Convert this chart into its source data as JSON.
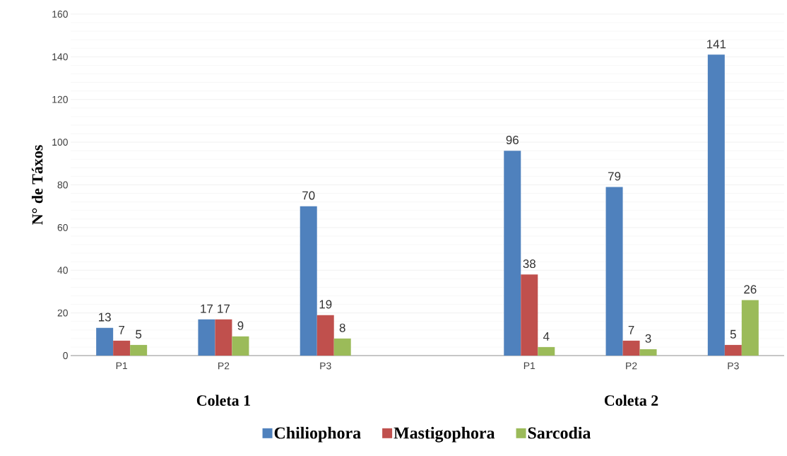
{
  "chart_data": {
    "type": "bar",
    "ylabel": "N° de Táxos",
    "categories": [
      "P1",
      "P2",
      "P3",
      null,
      "P1",
      "P2",
      "P3"
    ],
    "series": [
      {
        "name": "Chiliophora",
        "color": "#4f81bd",
        "values": [
          13,
          17,
          70,
          null,
          96,
          79,
          141
        ]
      },
      {
        "name": "Mastigophora",
        "color": "#c0504d",
        "values": [
          7,
          17,
          19,
          null,
          38,
          7,
          5
        ]
      },
      {
        "name": "Sarcodia",
        "color": "#9bbb59",
        "values": [
          5,
          9,
          8,
          null,
          4,
          3,
          26
        ]
      }
    ],
    "annotations": [
      "Coleta 1",
      "Coleta 2"
    ],
    "ylim": [
      0,
      160
    ],
    "yticks": [
      0,
      20,
      40,
      60,
      80,
      100,
      120,
      140,
      160
    ],
    "grid": "y",
    "legend": "bottom",
    "data_labels": true
  }
}
